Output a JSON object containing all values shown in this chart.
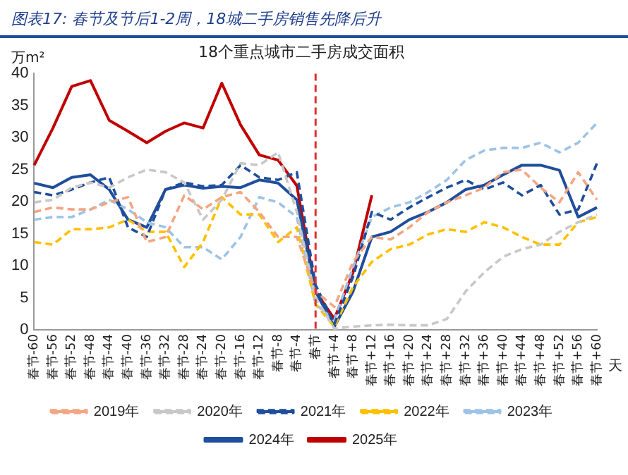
{
  "chart_data": {
    "type": "line",
    "title": "图表17: 春节及节后1-2周，18城二手房销售先降后升",
    "subtitle": "18个重点城市二手房成交面积",
    "ylabel": "万m²",
    "xlabel": "天",
    "categories": [
      "春节-60",
      "春节-56",
      "春节-52",
      "春节-48",
      "春节-44",
      "春节-40",
      "春节-36",
      "春节-32",
      "春节-28",
      "春节-24",
      "春节-20",
      "春节-16",
      "春节-12",
      "春节-8",
      "春节-4",
      "春节",
      "春节+4",
      "春节+8",
      "春节+12",
      "春节+16",
      "春节+20",
      "春节+24",
      "春节+28",
      "春节+32",
      "春节+36",
      "春节+40",
      "春节+44",
      "春节+48",
      "春节+52",
      "春节+56",
      "春节+60"
    ],
    "series": [
      {
        "name": "2019年",
        "color": "#f4a582",
        "line_style": "dashed",
        "values": [
          18.4,
          19.1,
          18.8,
          18.8,
          19.9,
          20.7,
          13.7,
          14.5,
          21,
          18.8,
          20.7,
          21.5,
          18.4,
          14.5,
          14.5,
          6,
          3.6,
          10.6,
          14.5,
          14.1,
          16,
          18.4,
          19.9,
          21,
          22.2,
          24.6,
          25,
          22.2,
          19.9,
          24.6,
          20.3
        ]
      },
      {
        "name": "2020年",
        "color": "#c8c8c8",
        "line_style": "dashed",
        "values": [
          19.9,
          20.3,
          22.2,
          23,
          22.2,
          23.8,
          25,
          24.6,
          23,
          17.2,
          20.3,
          26,
          25.7,
          27.7,
          18.4,
          5,
          0.2,
          0.5,
          0.7,
          0.8,
          0.7,
          0.7,
          1.7,
          6,
          9,
          11.4,
          12.6,
          13.3,
          15.3,
          16.8,
          18
        ]
      },
      {
        "name": "2021年",
        "color": "#1f4e9c",
        "line_style": "dashed",
        "values": [
          21.5,
          21,
          21.9,
          23,
          23.8,
          16,
          14.5,
          21.9,
          23,
          22.4,
          22.6,
          25.7,
          23.8,
          23.4,
          24.6,
          7,
          0.9,
          8.3,
          18.4,
          17.2,
          19.1,
          20.7,
          22.2,
          23.4,
          21.9,
          23,
          21,
          22.6,
          18,
          18.8,
          26
        ]
      },
      {
        "name": "2022年",
        "color": "#ffc000",
        "line_style": "dashed",
        "values": [
          13.7,
          13.3,
          15.7,
          15.7,
          16,
          17.2,
          15.3,
          15.3,
          9.8,
          13.7,
          20.7,
          18,
          18,
          13.7,
          16,
          4,
          0.5,
          6.7,
          10.6,
          12.6,
          13.3,
          14.9,
          15.7,
          15.3,
          16.8,
          16,
          14.5,
          13.3,
          13.3,
          16.8,
          17.6
        ]
      },
      {
        "name": "2023年",
        "color": "#9dc3e6",
        "line_style": "dashed",
        "values": [
          17.2,
          17.6,
          17.6,
          18.8,
          20.3,
          18.8,
          16.8,
          16,
          12.9,
          12.9,
          11,
          14.5,
          20.7,
          19.9,
          17.6,
          4,
          1.5,
          9.8,
          17.6,
          19.1,
          19.9,
          21.5,
          23.4,
          26.5,
          28,
          28.4,
          28.4,
          29.2,
          27.7,
          29.2,
          32.3
        ]
      },
      {
        "name": "2024年",
        "color": "#1f4e9c",
        "line_style": "solid",
        "values": [
          22.9,
          22.2,
          23.8,
          24.2,
          21.9,
          17.2,
          16,
          21.9,
          22.6,
          22.1,
          22.4,
          22.2,
          23.4,
          22.9,
          20.3,
          6,
          0.5,
          6,
          14.5,
          15.3,
          17.2,
          18.4,
          19.9,
          21.9,
          22.6,
          24.2,
          25.7,
          25.7,
          24.9,
          17.6,
          19.1
        ]
      },
      {
        "name": "2025年",
        "color": "#c00000",
        "line_style": "solid",
        "values": [
          25.7,
          31.5,
          38,
          38.9,
          32.7,
          31,
          29.2,
          31,
          32.3,
          31.5,
          38.5,
          32,
          27.3,
          26.5,
          22.5,
          6,
          1.7,
          9,
          21,
          null,
          null,
          null,
          null,
          null,
          null,
          null,
          null,
          null,
          null,
          null,
          null
        ]
      }
    ],
    "ylim": [
      0,
      40
    ],
    "yticks": [
      0,
      5,
      10,
      15,
      20,
      25,
      30,
      35,
      40
    ],
    "grid": false,
    "legend": "bottom",
    "marker": "none",
    "ref_lines": [
      {
        "axis": "x",
        "value": "春节",
        "color": "#e03030",
        "line_style": "dashed"
      }
    ]
  }
}
